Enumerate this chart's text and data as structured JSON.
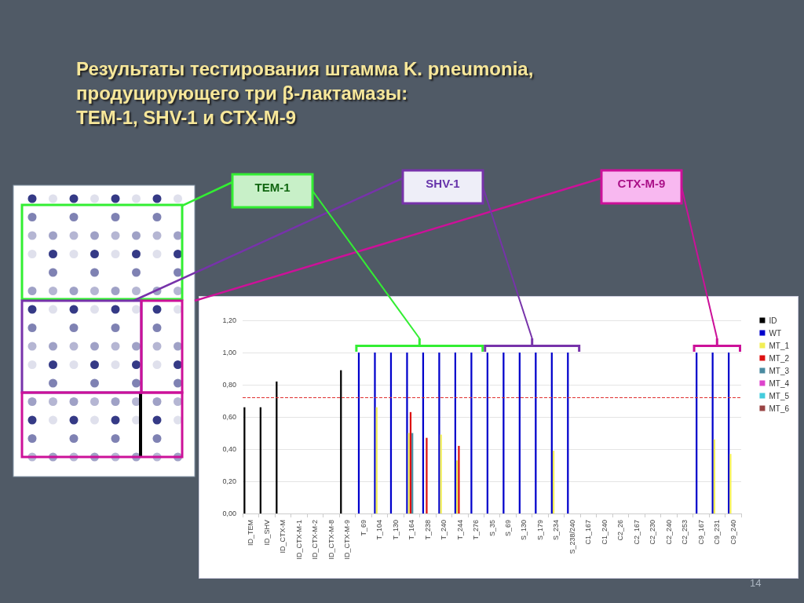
{
  "chart_data": {
    "type": "bar",
    "title": "Результаты тестирования штамма K. pneumonia,\nпродуцирующего три β-лактамазы:\nTEM-1, SHV-1 и CTX-M-9",
    "categories": [
      "ID_TEM",
      "ID_SHV",
      "ID_CTX-M",
      "ID_CTX-M-1",
      "ID_CTX-M-2",
      "ID_CTX-M-8",
      "ID_CTX-M-9",
      "T_69",
      "T_104",
      "T_130",
      "T_164",
      "T_238",
      "T_240",
      "T_244",
      "T_276",
      "S_35",
      "S_69",
      "S_130",
      "S_179",
      "S_234",
      "S_238/240",
      "C1_167",
      "C1_240",
      "C2_26",
      "C2_167",
      "C2_230",
      "C2_240",
      "C2_253",
      "C9_167",
      "C9_231",
      "C9_240"
    ],
    "series": [
      {
        "name": "ID",
        "color": "#000000",
        "values": [
          0.66,
          0.66,
          0.82,
          null,
          null,
          null,
          0.89,
          null,
          null,
          null,
          null,
          null,
          null,
          null,
          null,
          null,
          null,
          null,
          null,
          null,
          null,
          null,
          null,
          null,
          null,
          null,
          null,
          null,
          null,
          null,
          null
        ]
      },
      {
        "name": "WT",
        "color": "#0000cc",
        "values": [
          null,
          null,
          null,
          null,
          null,
          null,
          null,
          1,
          1,
          1,
          1,
          1,
          1,
          1,
          1,
          1,
          1,
          1,
          1,
          1,
          1,
          null,
          null,
          null,
          null,
          null,
          null,
          null,
          1,
          1,
          1
        ]
      },
      {
        "name": "MT_1",
        "color": "#f2ee55",
        "values": [
          null,
          null,
          null,
          null,
          null,
          null,
          null,
          null,
          0.66,
          null,
          0.5,
          null,
          0.49,
          0.33,
          null,
          null,
          null,
          null,
          null,
          0.39,
          null,
          null,
          null,
          null,
          null,
          null,
          null,
          null,
          null,
          0.46,
          0.37
        ]
      },
      {
        "name": "MT_2",
        "color": "#dd1111",
        "values": [
          null,
          null,
          null,
          null,
          null,
          null,
          null,
          null,
          null,
          null,
          0.63,
          0.47,
          null,
          0.42,
          null,
          null,
          null,
          null,
          null,
          null,
          null,
          null,
          null,
          null,
          null,
          null,
          null,
          null,
          null,
          null,
          null
        ]
      },
      {
        "name": "MT_3",
        "color": "#4a8aa0",
        "values": [
          null,
          null,
          null,
          null,
          null,
          null,
          null,
          null,
          null,
          null,
          0.5,
          null,
          null,
          null,
          null,
          null,
          null,
          null,
          null,
          null,
          null,
          null,
          null,
          null,
          null,
          null,
          null,
          null,
          null,
          null,
          null
        ]
      },
      {
        "name": "MT_4",
        "color": "#dd44cc",
        "values": [
          null,
          null,
          null,
          null,
          null,
          null,
          null,
          null,
          null,
          null,
          null,
          null,
          null,
          null,
          null,
          null,
          null,
          null,
          null,
          null,
          null,
          null,
          null,
          null,
          null,
          null,
          null,
          null,
          null,
          null,
          null
        ]
      },
      {
        "name": "MT_5",
        "color": "#44ccdd",
        "values": [
          null,
          null,
          null,
          null,
          null,
          null,
          null,
          null,
          null,
          null,
          null,
          null,
          null,
          null,
          null,
          null,
          null,
          null,
          null,
          null,
          null,
          null,
          null,
          null,
          null,
          null,
          null,
          null,
          null,
          null,
          null
        ]
      },
      {
        "name": "MT_6",
        "color": "#994444",
        "values": [
          null,
          null,
          null,
          null,
          null,
          null,
          null,
          null,
          null,
          null,
          null,
          null,
          null,
          null,
          null,
          null,
          null,
          null,
          null,
          null,
          null,
          null,
          null,
          null,
          null,
          null,
          null,
          null,
          null,
          null,
          null
        ]
      }
    ],
    "ylim": [
      0,
      1.2
    ],
    "yticks": [
      {
        "value": 0,
        "label": "0,00"
      },
      {
        "value": 0.2,
        "label": "0,20"
      },
      {
        "value": 0.4,
        "label": "0,40"
      },
      {
        "value": 0.6,
        "label": "0,60"
      },
      {
        "value": 0.8,
        "label": "0,80"
      },
      {
        "value": 1,
        "label": "1,00"
      },
      {
        "value": 1.2,
        "label": "1,20"
      }
    ],
    "ref_lines": [
      {
        "axis": "y",
        "value": 0.72,
        "color": "#e03030",
        "line_style": "dashed"
      }
    ],
    "annotations": [
      "TEM-1",
      "SHV-1",
      "CTX-M-9",
      "14"
    ],
    "grid": "y",
    "legend": "right"
  }
}
